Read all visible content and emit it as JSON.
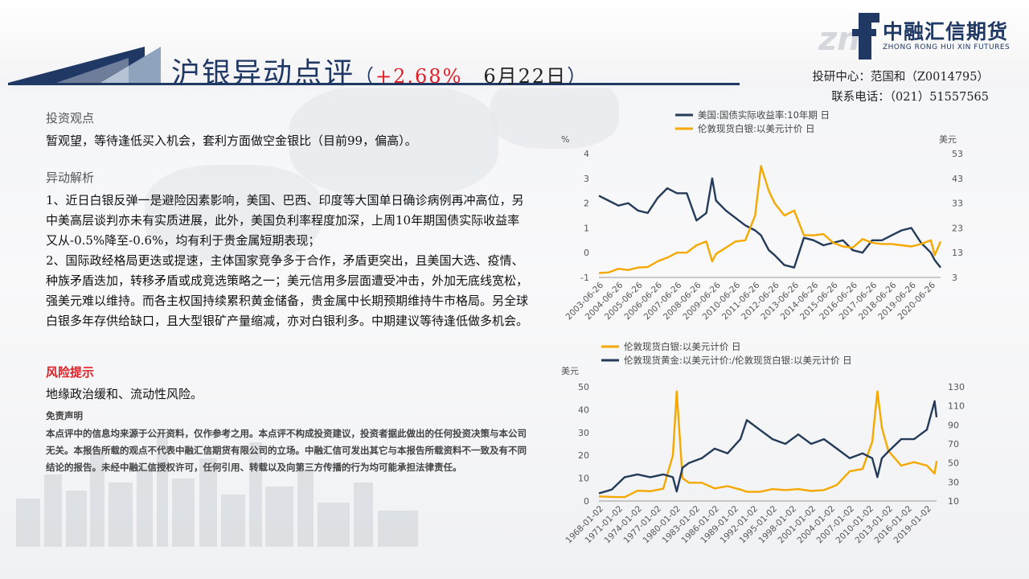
{
  "header": {
    "title_main": "沪银异动点评",
    "title_open": "（",
    "title_change": "+2.68%",
    "title_date": "6月22日",
    "title_close": "）",
    "logo_name": "中融汇信期货",
    "logo_sub": "ZHONG RONG HUI XIN FUTURES"
  },
  "contact": {
    "line1": "投研中心：范国和（Z0014795）",
    "line2": "联系电话：（021）51557565"
  },
  "left": {
    "view_heading": "投资观点",
    "view_text": "暂观望，等待逢低买入机会，套利方面做空金银比（目前99，偏高）。",
    "analysis_heading": "异动解析",
    "analysis_p1": "1、近日白银反弹一是避险因素影响，美国、巴西、印度等大国单日确诊病例再冲高位，另中美高层谈判亦未有实质进展，此外，美国负利率程度加深，上周10年期国债实际收益率又从-0.5%降至-0.6%，均有利于贵金属短期表现；",
    "analysis_p2": "2、国际政经格局更迭或提速，主体国家竞争多于合作，矛盾更突出，且美国大选、疫情、种族矛盾迭加，转移矛盾或成竞选策略之一；美元信用多层面遭受冲击，外加无底线宽松，强美元难以维持。而各主权国持续累积黄金储备，贵金属中长期预期维持牛市格局。另全球白银多年存供给缺口，且大型银矿产量缩减，亦对白银利多。中期建议等待逢低做多机会。",
    "risk_heading": "风险提示",
    "risk_text": "地缘政治缓和、流动性风险。",
    "disclaimer_heading": "免责声明",
    "disclaimer_text": "本点评中的信息均来源于公开资料，仅作参考之用。本点评不构成投资建议，投资者据此做出的任何投资决策与本公司无关。本报告所载的观点不代表中融汇信期货有限公司的立场。中融汇信可发出其它与本报告所载资料不一致及有不同结论的报告。未经中融汇信授权许可，任何引用、转载以及向第三方传播的行为均可能承担法律责任。"
  },
  "colors": {
    "navy": "#1f3864",
    "red": "#e01f26",
    "series_dark": "#243b5a",
    "series_gold": "#f5a800"
  },
  "chart_data": [
    {
      "type": "line",
      "legend": [
        "美国:国债实际收益率:10年期 日",
        "伦敦现货白银:以美元计价 日"
      ],
      "ylabel_left": "%",
      "ylabel_right": "美元",
      "y_left_ticks": [
        "4",
        "3",
        "2",
        "1",
        "0",
        "-1"
      ],
      "y_right_ticks": [
        "53",
        "43",
        "33",
        "23",
        "13",
        "3"
      ],
      "ylim_left": [
        -1,
        4
      ],
      "ylim_right": [
        3,
        53
      ],
      "x_ticks": [
        "2003-06-26",
        "2004-06-26",
        "2005-06-26",
        "2006-06-26",
        "2007-06-26",
        "2008-06-26",
        "2009-06-26",
        "2010-06-26",
        "2011-06-26",
        "2012-06-26",
        "2013-06-26",
        "2014-06-26",
        "2015-06-26",
        "2016-06-26",
        "2017-06-26",
        "2018-06-26",
        "2019-06-26",
        "2020-06-26"
      ],
      "x": [
        2003.0,
        2003.5,
        2004.0,
        2004.5,
        2005.0,
        2005.5,
        2006.0,
        2006.5,
        2007.0,
        2007.5,
        2008.0,
        2008.5,
        2008.8,
        2009.0,
        2009.5,
        2010.0,
        2010.5,
        2011.0,
        2011.3,
        2011.7,
        2012.0,
        2012.5,
        2013.0,
        2013.5,
        2014.0,
        2014.5,
        2015.0,
        2015.5,
        2016.0,
        2016.5,
        2017.0,
        2017.5,
        2018.0,
        2018.5,
        2019.0,
        2019.5,
        2020.0,
        2020.2,
        2020.5
      ],
      "series": [
        {
          "name": "美国:国债实际收益率:10年期 日",
          "axis": "left",
          "values": [
            2.3,
            2.1,
            1.9,
            2.0,
            1.7,
            1.6,
            2.2,
            2.6,
            2.4,
            2.4,
            1.3,
            1.6,
            3.0,
            2.1,
            1.7,
            1.4,
            1.1,
            0.9,
            0.7,
            0.1,
            -0.1,
            -0.5,
            -0.6,
            0.6,
            0.5,
            0.3,
            0.4,
            0.5,
            0.1,
            0.0,
            0.5,
            0.5,
            0.7,
            0.9,
            1.0,
            0.4,
            0.0,
            -0.3,
            -0.6
          ]
        },
        {
          "name": "伦敦现货白银:以美元计价 日",
          "axis": "right",
          "values": [
            4.8,
            5.0,
            6.5,
            6.0,
            7.0,
            7.2,
            9.5,
            11.0,
            13.0,
            13.0,
            16.0,
            17.5,
            9.5,
            12.5,
            15.0,
            17.5,
            18.0,
            28.0,
            48.0,
            38.0,
            33.0,
            28.0,
            30.0,
            20.0,
            20.0,
            20.5,
            17.0,
            15.5,
            15.0,
            18.5,
            17.0,
            16.5,
            16.5,
            16.0,
            15.5,
            16.5,
            18.0,
            12.0,
            17.5
          ]
        }
      ]
    },
    {
      "type": "line",
      "legend": [
        "伦敦现货白银:以美元计价 日",
        "伦敦现货黄金:以美元计价:/伦敦现货白银:以美元计价 日"
      ],
      "ylabel_left": "美元",
      "y_left_ticks": [
        "50",
        "40",
        "30",
        "20",
        "10",
        "0"
      ],
      "y_right_ticks": [
        "130",
        "110",
        "90",
        "70",
        "50",
        "30",
        "10"
      ],
      "ylim_left": [
        0,
        50
      ],
      "ylim_right": [
        10,
        130
      ],
      "x_ticks": [
        "1968-01-02",
        "1971-01-02",
        "1974-01-02",
        "1977-01-02",
        "1980-01-02",
        "1983-01-02",
        "1986-01-02",
        "1989-01-02",
        "1992-01-02",
        "1995-01-02",
        "1998-01-02",
        "2001-01-02",
        "2004-01-02",
        "2007-01-02",
        "2010-01-02",
        "2013-01-02",
        "2016-01-02",
        "2019-01-02"
      ],
      "x": [
        1968,
        1970,
        1972,
        1974,
        1976,
        1978,
        1979.5,
        1980.1,
        1981,
        1982,
        1984,
        1986,
        1988,
        1990,
        1991,
        1993,
        1995,
        1997,
        1999,
        2001,
        2003,
        2005,
        2007,
        2009,
        2010.5,
        2011.3,
        2012,
        2013,
        2015,
        2017,
        2019,
        2020.2,
        2020.5
      ],
      "series": [
        {
          "name": "伦敦现货白银:以美元计价 日",
          "axis": "left",
          "values": [
            2.0,
            1.8,
            1.7,
            4.5,
            4.3,
            5.4,
            20.0,
            48.0,
            10.0,
            8.0,
            8.0,
            5.5,
            6.5,
            5.0,
            4.0,
            4.0,
            5.2,
            4.8,
            5.2,
            4.4,
            4.8,
            7.0,
            13.0,
            14.0,
            26.0,
            48.0,
            32.0,
            22.0,
            15.5,
            17.0,
            15.5,
            12.0,
            17.5
          ]
        },
        {
          "name": "伦敦现貨黄金:以美元计价:/伦敦现货白银:以美元计价 日",
          "axis": "right",
          "values": [
            18,
            22,
            35,
            38,
            35,
            38,
            35,
            20,
            45,
            50,
            55,
            65,
            60,
            75,
            95,
            85,
            75,
            70,
            80,
            70,
            75,
            65,
            55,
            60,
            55,
            35,
            55,
            62,
            75,
            75,
            85,
            115,
            98
          ]
        }
      ]
    }
  ]
}
